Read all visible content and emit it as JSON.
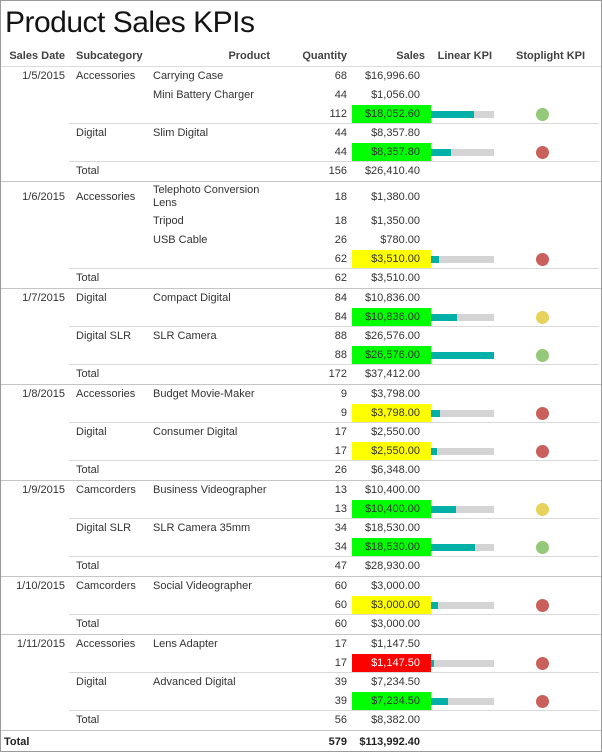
{
  "title": "Product Sales KPIs",
  "columns": [
    "Sales Date",
    "Subcategory",
    "Product",
    "Quantity",
    "Sales",
    "Linear KPI",
    "Stoplight KPI"
  ],
  "colors": {
    "highlight_green": "#00ff00",
    "highlight_yellow": "#ffff00",
    "highlight_red": "#ff0000",
    "bar_fill": "#01b0a6",
    "bar_track": "#d4d4d4",
    "stoplight_green": "#93c978",
    "stoplight_yellow": "#e8d25e",
    "stoplight_red": "#c9605b"
  },
  "groups": [
    {
      "date": "1/5/2015",
      "subgroups": [
        {
          "subcategory": "Accessories",
          "products": [
            {
              "product": "Carrying Case",
              "quantity": "68",
              "sales": "$16,996.60"
            },
            {
              "product": "Mini Battery Charger",
              "quantity": "44",
              "sales": "$1,056.00"
            }
          ],
          "subtotal": {
            "quantity": "112",
            "sales": "$18,052.60",
            "highlight": "green",
            "bar_pct": 68,
            "stoplight": "green"
          }
        },
        {
          "subcategory": "Digital",
          "products": [
            {
              "product": "Slim Digital",
              "quantity": "44",
              "sales": "$8,357.80"
            }
          ],
          "subtotal": {
            "quantity": "44",
            "sales": "$8,357.80",
            "highlight": "green",
            "bar_pct": 31,
            "stoplight": "red"
          }
        }
      ],
      "total": {
        "label": "Total",
        "quantity": "156",
        "sales": "$26,410.40"
      }
    },
    {
      "date": "1/6/2015",
      "subgroups": [
        {
          "subcategory": "Accessories",
          "products": [
            {
              "product": "Telephoto Conversion Lens",
              "quantity": "18",
              "sales": "$1,380.00"
            },
            {
              "product": "Tripod",
              "quantity": "18",
              "sales": "$1,350.00"
            },
            {
              "product": "USB Cable",
              "quantity": "26",
              "sales": "$780.00"
            }
          ],
          "subtotal": {
            "quantity": "62",
            "sales": "$3,510.00",
            "highlight": "yellow",
            "bar_pct": 13,
            "stoplight": "red"
          }
        }
      ],
      "total": {
        "label": "Total",
        "quantity": "62",
        "sales": "$3,510.00"
      }
    },
    {
      "date": "1/7/2015",
      "subgroups": [
        {
          "subcategory": "Digital",
          "products": [
            {
              "product": "Compact Digital",
              "quantity": "84",
              "sales": "$10,836.00"
            }
          ],
          "subtotal": {
            "quantity": "84",
            "sales": "$10,836.00",
            "highlight": "green",
            "bar_pct": 41,
            "stoplight": "yellow"
          }
        },
        {
          "subcategory": "Digital SLR",
          "products": [
            {
              "product": "SLR Camera",
              "quantity": "88",
              "sales": "$26,576.00"
            }
          ],
          "subtotal": {
            "quantity": "88",
            "sales": "$26,576.00",
            "highlight": "green",
            "bar_pct": 100,
            "stoplight": "green"
          }
        }
      ],
      "total": {
        "label": "Total",
        "quantity": "172",
        "sales": "$37,412.00"
      }
    },
    {
      "date": "1/8/2015",
      "subgroups": [
        {
          "subcategory": "Accessories",
          "products": [
            {
              "product": "Budget Movie-Maker",
              "quantity": "9",
              "sales": "$3,798.00"
            }
          ],
          "subtotal": {
            "quantity": "9",
            "sales": "$3,798.00",
            "highlight": "yellow",
            "bar_pct": 14,
            "stoplight": "red"
          }
        },
        {
          "subcategory": "Digital",
          "products": [
            {
              "product": "Consumer Digital",
              "quantity": "17",
              "sales": "$2,550.00"
            }
          ],
          "subtotal": {
            "quantity": "17",
            "sales": "$2,550.00",
            "highlight": "yellow",
            "bar_pct": 10,
            "stoplight": "red"
          }
        }
      ],
      "total": {
        "label": "Total",
        "quantity": "26",
        "sales": "$6,348.00"
      }
    },
    {
      "date": "1/9/2015",
      "subgroups": [
        {
          "subcategory": "Camcorders",
          "products": [
            {
              "product": "Business Videographer",
              "quantity": "13",
              "sales": "$10,400.00"
            }
          ],
          "subtotal": {
            "quantity": "13",
            "sales": "$10,400.00",
            "highlight": "green",
            "bar_pct": 39,
            "stoplight": "yellow"
          }
        },
        {
          "subcategory": "Digital SLR",
          "products": [
            {
              "product": "SLR Camera 35mm",
              "quantity": "34",
              "sales": "$18,530.00"
            }
          ],
          "subtotal": {
            "quantity": "34",
            "sales": "$18,530.00",
            "highlight": "green",
            "bar_pct": 70,
            "stoplight": "green"
          }
        }
      ],
      "total": {
        "label": "Total",
        "quantity": "47",
        "sales": "$28,930.00"
      }
    },
    {
      "date": "1/10/2015",
      "subgroups": [
        {
          "subcategory": "Camcorders",
          "products": [
            {
              "product": "Social Videographer",
              "quantity": "60",
              "sales": "$3,000.00"
            }
          ],
          "subtotal": {
            "quantity": "60",
            "sales": "$3,000.00",
            "highlight": "yellow",
            "bar_pct": 11,
            "stoplight": "red"
          }
        }
      ],
      "total": {
        "label": "Total",
        "quantity": "60",
        "sales": "$3,000.00"
      }
    },
    {
      "date": "1/11/2015",
      "subgroups": [
        {
          "subcategory": "Accessories",
          "products": [
            {
              "product": "Lens Adapter",
              "quantity": "17",
              "sales": "$1,147.50"
            }
          ],
          "subtotal": {
            "quantity": "17",
            "sales": "$1,147.50",
            "highlight": "red",
            "bar_pct": 4,
            "stoplight": "red"
          }
        },
        {
          "subcategory": "Digital",
          "products": [
            {
              "product": "Advanced Digital",
              "quantity": "39",
              "sales": "$7,234.50"
            }
          ],
          "subtotal": {
            "quantity": "39",
            "sales": "$7,234.50",
            "highlight": "green",
            "bar_pct": 27,
            "stoplight": "red"
          }
        }
      ],
      "total": {
        "label": "Total",
        "quantity": "56",
        "sales": "$8,382.00"
      }
    }
  ],
  "grand_total": {
    "label": "Total",
    "quantity": "579",
    "sales": "$113,992.40"
  }
}
